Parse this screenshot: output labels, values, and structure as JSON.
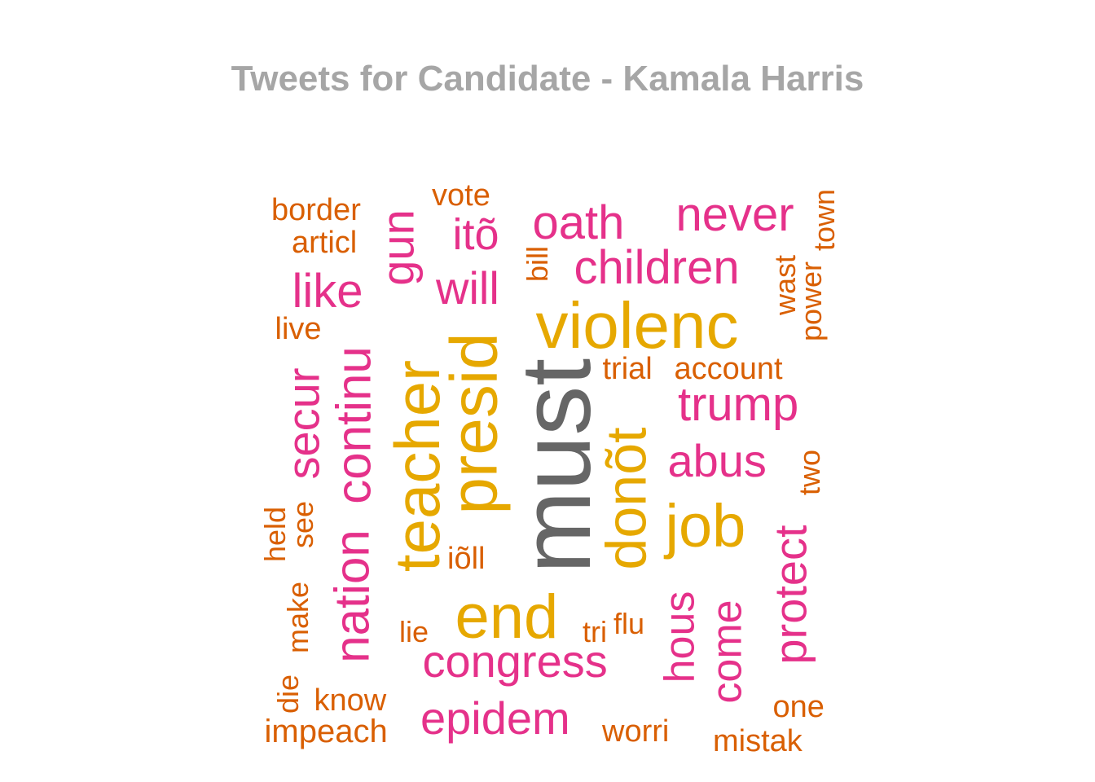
{
  "title": "Tweets for Candidate - Kamala Harris",
  "colors": {
    "gray": "#666666",
    "gold": "#e6a800",
    "pink": "#e5318a",
    "orange": "#d95f02"
  },
  "chart_data": {
    "type": "wordcloud",
    "title": "Tweets for Candidate - Kamala Harris",
    "words": [
      {
        "text": "must",
        "group": "gray"
      },
      {
        "text": "violenc",
        "group": "gold"
      },
      {
        "text": "presid",
        "group": "gold"
      },
      {
        "text": "teacher",
        "group": "gold"
      },
      {
        "text": "end",
        "group": "gold"
      },
      {
        "text": "job",
        "group": "gold"
      },
      {
        "text": "donõt",
        "group": "gold"
      },
      {
        "text": "continu",
        "group": "pink"
      },
      {
        "text": "nation",
        "group": "pink"
      },
      {
        "text": "children",
        "group": "pink"
      },
      {
        "text": "trump",
        "group": "pink"
      },
      {
        "text": "never",
        "group": "pink"
      },
      {
        "text": "oath",
        "group": "pink"
      },
      {
        "text": "congress",
        "group": "pink"
      },
      {
        "text": "epidem",
        "group": "pink"
      },
      {
        "text": "abus",
        "group": "pink"
      },
      {
        "text": "protect",
        "group": "pink"
      },
      {
        "text": "come",
        "group": "pink"
      },
      {
        "text": "hous",
        "group": "pink"
      },
      {
        "text": "secur",
        "group": "pink"
      },
      {
        "text": "like",
        "group": "pink"
      },
      {
        "text": "will",
        "group": "pink"
      },
      {
        "text": "itõ",
        "group": "pink"
      },
      {
        "text": "gun",
        "group": "pink"
      },
      {
        "text": "account",
        "group": "orange"
      },
      {
        "text": "trial",
        "group": "orange"
      },
      {
        "text": "impeach",
        "group": "orange"
      },
      {
        "text": "border",
        "group": "orange"
      },
      {
        "text": "articl",
        "group": "orange"
      },
      {
        "text": "vote",
        "group": "orange"
      },
      {
        "text": "live",
        "group": "orange"
      },
      {
        "text": "know",
        "group": "orange"
      },
      {
        "text": "worri",
        "group": "orange"
      },
      {
        "text": "mistak",
        "group": "orange"
      },
      {
        "text": "one",
        "group": "orange"
      },
      {
        "text": "power",
        "group": "orange"
      },
      {
        "text": "wast",
        "group": "orange"
      },
      {
        "text": "town",
        "group": "orange"
      },
      {
        "text": "two",
        "group": "orange"
      },
      {
        "text": "bill",
        "group": "orange"
      },
      {
        "text": "iõll",
        "group": "orange"
      },
      {
        "text": "lie",
        "group": "orange"
      },
      {
        "text": "tri",
        "group": "orange"
      },
      {
        "text": "flu",
        "group": "orange"
      },
      {
        "text": "held",
        "group": "orange"
      },
      {
        "text": "see",
        "group": "orange"
      },
      {
        "text": "make",
        "group": "orange"
      },
      {
        "text": "die",
        "group": "orange"
      }
    ]
  }
}
